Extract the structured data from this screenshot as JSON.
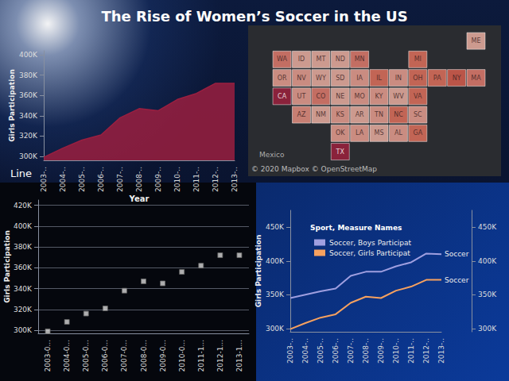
{
  "title": "The Rise of Women’s Soccer in the US",
  "chart_data": [
    {
      "type": "area",
      "ylabel": "Girls Participation",
      "xlabel": "Year",
      "categories": [
        "2003-..",
        "2004-..",
        "2005-..",
        "2006-..",
        "2007-..",
        "2008-..",
        "2009-..",
        "2010-..",
        "2011-..",
        "2012-..",
        "2013-.."
      ],
      "values": [
        299000,
        308000,
        316000,
        321000,
        338000,
        347000,
        345000,
        356000,
        362000,
        372000,
        372000
      ],
      "color": "#9a1f40",
      "ylim": [
        296000,
        404000
      ],
      "yticks": [
        {
          "value": 300000,
          "label": "300K"
        },
        {
          "value": 320000,
          "label": "320K"
        },
        {
          "value": 340000,
          "label": "340K"
        },
        {
          "value": 360000,
          "label": "360K"
        },
        {
          "value": 380000,
          "label": "380K"
        },
        {
          "value": 400000,
          "label": "400K"
        }
      ],
      "grid": false
    },
    {
      "type": "map",
      "categories": [
        "WA",
        "MT",
        "ND",
        "MN",
        "OR",
        "ID",
        "WY",
        "SD",
        "NE",
        "IA",
        "NV",
        "UT",
        "CO",
        "KS",
        "MO",
        "CA",
        "AZ",
        "NM",
        "OK",
        "TX",
        "IL",
        "IN",
        "OH",
        "MI",
        "NY",
        "PA",
        "KY",
        "TN",
        "AR",
        "MS",
        "AL",
        "GA",
        "LA",
        "SC",
        "NC",
        "VA",
        "WV",
        "ME",
        "MA"
      ],
      "colors": [
        "#ea8070",
        "#f5b6a8",
        "#f5b6a8",
        "#ea8070",
        "#f2a596",
        "#f5b6a8",
        "#f5b6a8",
        "#f5b6a8",
        "#f5b6a8",
        "#f2a596",
        "#f2a596",
        "#f2a596",
        "#ea8070",
        "#f2a596",
        "#f2a596",
        "#a3213f",
        "#ef9584",
        "#f5b6a8",
        "#f2a596",
        "#a3213f",
        "#e8745f",
        "#f2a596",
        "#e8745f",
        "#e8745f",
        "#e0604f",
        "#e8745f",
        "#f2a596",
        "#f2a596",
        "#f5b6a8",
        "#f5b6a8",
        "#f2a596",
        "#e8745f",
        "#f2a596",
        "#f2a596",
        "#e8745f",
        "#e8745f",
        "#f5b6a8",
        "#f5b6a8",
        "#ea8070"
      ],
      "annotations": [
        "Mexico",
        "© 2020 Mapbox © OpenStreetMap"
      ]
    },
    {
      "type": "scatter",
      "title": "Line",
      "ylabel": "Girls Participation",
      "categories": [
        "2003-0...",
        "2004-0...",
        "2005-0...",
        "2006-0...",
        "2007-0...",
        "2008-0...",
        "2009-0...",
        "2010-0...",
        "2011-1...",
        "2012-1...",
        "2013-1..."
      ],
      "values": [
        299000,
        308000,
        316000,
        321000,
        338000,
        347000,
        345000,
        356000,
        362000,
        372000,
        372000
      ],
      "color": "#d8d8d8",
      "marker": "square",
      "ylim": [
        297000,
        425000
      ],
      "yticks": [
        {
          "value": 300000,
          "label": "300K"
        },
        {
          "value": 320000,
          "label": "320K"
        },
        {
          "value": 340000,
          "label": "340K"
        },
        {
          "value": 360000,
          "label": "360K"
        },
        {
          "value": 380000,
          "label": "380K"
        },
        {
          "value": 400000,
          "label": "400K"
        },
        {
          "value": 420000,
          "label": "420K"
        }
      ],
      "grid": true
    },
    {
      "type": "line",
      "ylabel": "Girls Participation",
      "categories": [
        "2003-..",
        "2004-..",
        "2005-..",
        "2006-..",
        "2007-..",
        "2008-..",
        "2009-..",
        "2010-..",
        "2011-..",
        "2012-..",
        "2013-.."
      ],
      "series": [
        {
          "name": "Soccer, Boys Participat",
          "color": "#9f9fe0",
          "label": "Soccer",
          "values": [
            345000,
            350000,
            355000,
            359000,
            378000,
            384000,
            384000,
            392000,
            398000,
            411000,
            410000
          ]
        },
        {
          "name": "Soccer, Girls Participat",
          "color": "#f7a15f",
          "label": "Soccer",
          "axis": "y2",
          "values": [
            299000,
            308000,
            316000,
            321000,
            338000,
            347000,
            345000,
            356000,
            362000,
            372000,
            372000
          ]
        }
      ],
      "ylim": [
        295000,
        475000
      ],
      "yticks": [
        {
          "value": 300000,
          "label": "300K"
        },
        {
          "value": 350000,
          "label": "350K"
        },
        {
          "value": 400000,
          "label": "400K"
        },
        {
          "value": 450000,
          "label": "450K"
        }
      ],
      "y2lim": [
        295000,
        475000
      ],
      "y2ticks": [
        {
          "value": 300000,
          "label": "300K"
        },
        {
          "value": 350000,
          "label": "350K"
        },
        {
          "value": 400000,
          "label": "400K"
        },
        {
          "value": 450000,
          "label": "450K"
        }
      ],
      "legend": "top-left",
      "legend_title": "Sport, Measure Names",
      "grid": false
    }
  ]
}
